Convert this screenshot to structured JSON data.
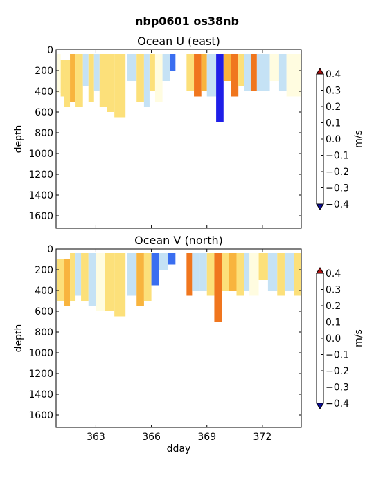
{
  "figure": {
    "suptitle": "nbp0601 os38nb"
  },
  "chart_data": [
    {
      "type": "heatmap",
      "title": "Ocean U (east)",
      "ylabel": "depth",
      "xlabel": "",
      "xlim": [
        360.85,
        374.1
      ],
      "ylim": [
        1720,
        0
      ],
      "yticks": [
        0,
        200,
        400,
        600,
        800,
        1000,
        1200,
        1400,
        1600
      ],
      "xticks": [
        363,
        366,
        369,
        372
      ],
      "xtick_labels_visible": false,
      "colorbar": {
        "label": "m/s",
        "ticks": [
          -0.4,
          -0.3,
          -0.2,
          -0.1,
          0.0,
          0.1,
          0.2,
          0.3,
          0.4
        ],
        "tick_labels": [
          "−0.4",
          "−0.3",
          "−0.2",
          "−0.1",
          "0.0",
          "0.1",
          "0.2",
          "0.3",
          "0.4"
        ],
        "extend": "both"
      },
      "bands": [
        {
          "x0": 360.9,
          "x1": 361.1,
          "d0": 40,
          "d1": 420,
          "v": 0.05
        },
        {
          "x0": 361.1,
          "x1": 361.3,
          "d0": 100,
          "d1": 450,
          "v": 0.1
        },
        {
          "x0": 361.3,
          "x1": 361.6,
          "d0": 100,
          "d1": 550,
          "v": 0.15
        },
        {
          "x0": 361.6,
          "x1": 361.9,
          "d0": 40,
          "d1": 500,
          "v": 0.2
        },
        {
          "x0": 361.9,
          "x1": 362.3,
          "d0": 40,
          "d1": 550,
          "v": 0.1
        },
        {
          "x0": 362.3,
          "x1": 362.6,
          "d0": 40,
          "d1": 350,
          "v": -0.05
        },
        {
          "x0": 362.6,
          "x1": 362.9,
          "d0": 40,
          "d1": 500,
          "v": 0.1
        },
        {
          "x0": 362.9,
          "x1": 363.2,
          "d0": 40,
          "d1": 400,
          "v": -0.1
        },
        {
          "x0": 363.2,
          "x1": 363.6,
          "d0": 40,
          "d1": 550,
          "v": 0.15
        },
        {
          "x0": 363.6,
          "x1": 364.0,
          "d0": 40,
          "d1": 600,
          "v": 0.1
        },
        {
          "x0": 364.0,
          "x1": 364.6,
          "d0": 40,
          "d1": 650,
          "v": 0.15
        },
        {
          "x0": 364.7,
          "x1": 365.2,
          "d0": 40,
          "d1": 300,
          "v": -0.05
        },
        {
          "x0": 365.2,
          "x1": 365.6,
          "d0": 40,
          "d1": 500,
          "v": 0.1
        },
        {
          "x0": 365.6,
          "x1": 365.9,
          "d0": 40,
          "d1": 550,
          "v": -0.1
        },
        {
          "x0": 365.9,
          "x1": 366.2,
          "d0": 40,
          "d1": 400,
          "v": 0.1
        },
        {
          "x0": 366.2,
          "x1": 366.6,
          "d0": 40,
          "d1": 500,
          "v": 0.05
        },
        {
          "x0": 366.6,
          "x1": 367.0,
          "d0": 40,
          "d1": 300,
          "v": -0.1
        },
        {
          "x0": 367.0,
          "x1": 367.3,
          "d0": 40,
          "d1": 200,
          "v": -0.25
        },
        {
          "x0": 367.9,
          "x1": 368.3,
          "d0": 40,
          "d1": 400,
          "v": 0.1
        },
        {
          "x0": 368.3,
          "x1": 368.7,
          "d0": 40,
          "d1": 450,
          "v": 0.3
        },
        {
          "x0": 368.7,
          "x1": 369.0,
          "d0": 40,
          "d1": 400,
          "v": 0.2
        },
        {
          "x0": 369.0,
          "x1": 369.5,
          "d0": 40,
          "d1": 450,
          "v": -0.1
        },
        {
          "x0": 369.5,
          "x1": 369.9,
          "d0": 40,
          "d1": 700,
          "v": -0.38
        },
        {
          "x0": 369.9,
          "x1": 370.3,
          "d0": 40,
          "d1": 300,
          "v": 0.2
        },
        {
          "x0": 370.3,
          "x1": 370.7,
          "d0": 40,
          "d1": 450,
          "v": 0.3
        },
        {
          "x0": 370.7,
          "x1": 371.0,
          "d0": 40,
          "d1": 350,
          "v": 0.1
        },
        {
          "x0": 371.0,
          "x1": 371.4,
          "d0": 40,
          "d1": 400,
          "v": -0.1
        },
        {
          "x0": 371.4,
          "x1": 371.7,
          "d0": 40,
          "d1": 400,
          "v": 0.3
        },
        {
          "x0": 371.7,
          "x1": 372.4,
          "d0": 40,
          "d1": 400,
          "v": -0.05
        },
        {
          "x0": 372.4,
          "x1": 372.9,
          "d0": 40,
          "d1": 300,
          "v": 0.05
        },
        {
          "x0": 372.9,
          "x1": 373.3,
          "d0": 40,
          "d1": 400,
          "v": -0.1
        },
        {
          "x0": 373.3,
          "x1": 374.1,
          "d0": 40,
          "d1": 450,
          "v": 0.05
        }
      ]
    },
    {
      "type": "heatmap",
      "title": "Ocean V (north)",
      "ylabel": "depth",
      "xlabel": "dday",
      "xlim": [
        360.85,
        374.1
      ],
      "ylim": [
        1720,
        0
      ],
      "yticks": [
        0,
        200,
        400,
        600,
        800,
        1000,
        1200,
        1400,
        1600
      ],
      "xticks": [
        363,
        366,
        369,
        372
      ],
      "xtick_labels_visible": true,
      "colorbar": {
        "label": "m/s",
        "ticks": [
          -0.4,
          -0.3,
          -0.2,
          -0.1,
          0.0,
          0.1,
          0.2,
          0.3,
          0.4
        ],
        "tick_labels": [
          "−0.4",
          "−0.3",
          "−0.2",
          "−0.1",
          "0.0",
          "0.1",
          "0.2",
          "0.3",
          "0.4"
        ],
        "extend": "both"
      },
      "bands": [
        {
          "x0": 360.9,
          "x1": 361.3,
          "d0": 100,
          "d1": 500,
          "v": 0.15
        },
        {
          "x0": 361.3,
          "x1": 361.6,
          "d0": 100,
          "d1": 550,
          "v": 0.2
        },
        {
          "x0": 361.6,
          "x1": 361.9,
          "d0": 40,
          "d1": 500,
          "v": 0.15
        },
        {
          "x0": 361.9,
          "x1": 362.2,
          "d0": 40,
          "d1": 450,
          "v": -0.05
        },
        {
          "x0": 362.2,
          "x1": 362.6,
          "d0": 40,
          "d1": 500,
          "v": 0.15
        },
        {
          "x0": 362.6,
          "x1": 363.0,
          "d0": 40,
          "d1": 550,
          "v": -0.1
        },
        {
          "x0": 363.0,
          "x1": 363.5,
          "d0": 40,
          "d1": 600,
          "v": 0.05
        },
        {
          "x0": 363.5,
          "x1": 364.0,
          "d0": 40,
          "d1": 600,
          "v": 0.15
        },
        {
          "x0": 364.0,
          "x1": 364.6,
          "d0": 40,
          "d1": 650,
          "v": 0.1
        },
        {
          "x0": 364.7,
          "x1": 365.2,
          "d0": 40,
          "d1": 450,
          "v": -0.05
        },
        {
          "x0": 365.2,
          "x1": 365.6,
          "d0": 40,
          "d1": 550,
          "v": 0.2
        },
        {
          "x0": 365.6,
          "x1": 366.0,
          "d0": 40,
          "d1": 500,
          "v": 0.15
        },
        {
          "x0": 366.0,
          "x1": 366.4,
          "d0": 40,
          "d1": 350,
          "v": -0.25
        },
        {
          "x0": 366.4,
          "x1": 366.9,
          "d0": 40,
          "d1": 200,
          "v": -0.1
        },
        {
          "x0": 366.9,
          "x1": 367.3,
          "d0": 40,
          "d1": 150,
          "v": -0.25
        },
        {
          "x0": 367.9,
          "x1": 368.2,
          "d0": 40,
          "d1": 450,
          "v": 0.3
        },
        {
          "x0": 368.2,
          "x1": 368.6,
          "d0": 40,
          "d1": 400,
          "v": -0.05
        },
        {
          "x0": 368.6,
          "x1": 369.0,
          "d0": 40,
          "d1": 400,
          "v": -0.1
        },
        {
          "x0": 369.0,
          "x1": 369.4,
          "d0": 40,
          "d1": 450,
          "v": 0.15
        },
        {
          "x0": 369.4,
          "x1": 369.8,
          "d0": 40,
          "d1": 700,
          "v": 0.3
        },
        {
          "x0": 369.8,
          "x1": 370.2,
          "d0": 40,
          "d1": 400,
          "v": 0.1
        },
        {
          "x0": 370.2,
          "x1": 370.6,
          "d0": 40,
          "d1": 400,
          "v": 0.25
        },
        {
          "x0": 370.6,
          "x1": 371.0,
          "d0": 40,
          "d1": 450,
          "v": 0.15
        },
        {
          "x0": 371.0,
          "x1": 371.3,
          "d0": 40,
          "d1": 400,
          "v": -0.1
        },
        {
          "x0": 371.3,
          "x1": 371.8,
          "d0": 40,
          "d1": 450,
          "v": 0.05
        },
        {
          "x0": 371.8,
          "x1": 372.3,
          "d0": 40,
          "d1": 300,
          "v": 0.15
        },
        {
          "x0": 372.3,
          "x1": 372.8,
          "d0": 40,
          "d1": 400,
          "v": -0.1
        },
        {
          "x0": 372.8,
          "x1": 373.2,
          "d0": 40,
          "d1": 450,
          "v": 0.15
        },
        {
          "x0": 373.2,
          "x1": 373.7,
          "d0": 40,
          "d1": 400,
          "v": -0.05
        },
        {
          "x0": 373.7,
          "x1": 374.1,
          "d0": 40,
          "d1": 450,
          "v": 0.15
        }
      ]
    }
  ],
  "colors": {
    "levels": [
      "#1f1fe8",
      "#3a6ef0",
      "#77b0ee",
      "#c5e2f5",
      "#fffce0",
      "#fce07a",
      "#f8b43e",
      "#f0761e",
      "#e04010"
    ],
    "under": "#1010a0",
    "over": "#b01010"
  }
}
